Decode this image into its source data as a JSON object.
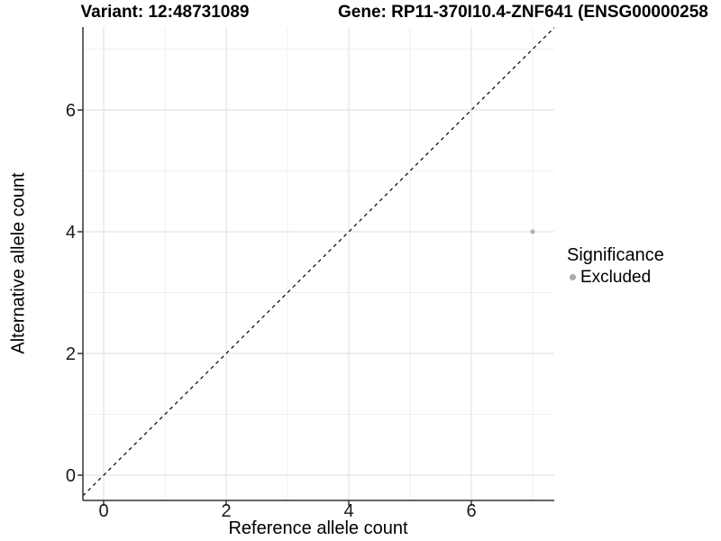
{
  "chart_data": {
    "type": "scatter",
    "title_left": "Variant: 12:48731089",
    "title_right": "Gene: RP11-370I10.4-ZNF641 (ENSG00000258",
    "xlabel": "Reference allele count",
    "ylabel": "Alternative allele count",
    "xlim": [
      -0.35,
      7.35
    ],
    "ylim": [
      -0.41,
      7.36
    ],
    "x_major_ticks": [
      0,
      2,
      4,
      6
    ],
    "y_major_ticks": [
      0,
      2,
      4,
      6
    ],
    "x_minor_gridlines": [
      1,
      3,
      5,
      7
    ],
    "y_minor_gridlines": [
      1,
      3,
      5,
      7
    ],
    "grid": "on",
    "reference_line": {
      "style": "dashed",
      "slope": 1,
      "intercept": 0,
      "color": "#000000"
    },
    "points": [
      {
        "x": 7,
        "y": 4,
        "series": "Excluded"
      }
    ],
    "series": [
      {
        "name": "Excluded",
        "color": "#b0b0b0"
      }
    ],
    "legend": {
      "position": "right",
      "title": "Significance",
      "items": [
        {
          "label": "Excluded",
          "color": "#aaaaaa"
        }
      ]
    }
  },
  "colors": {
    "background": "#ffffff",
    "grid_major": "#e4e4e4",
    "grid_minor": "#efefef",
    "axis_line": "#333333",
    "tick_text": "#1a1a1a",
    "title_text": "#000000",
    "point": "#b0b0b0",
    "reference_line": "#000000"
  }
}
